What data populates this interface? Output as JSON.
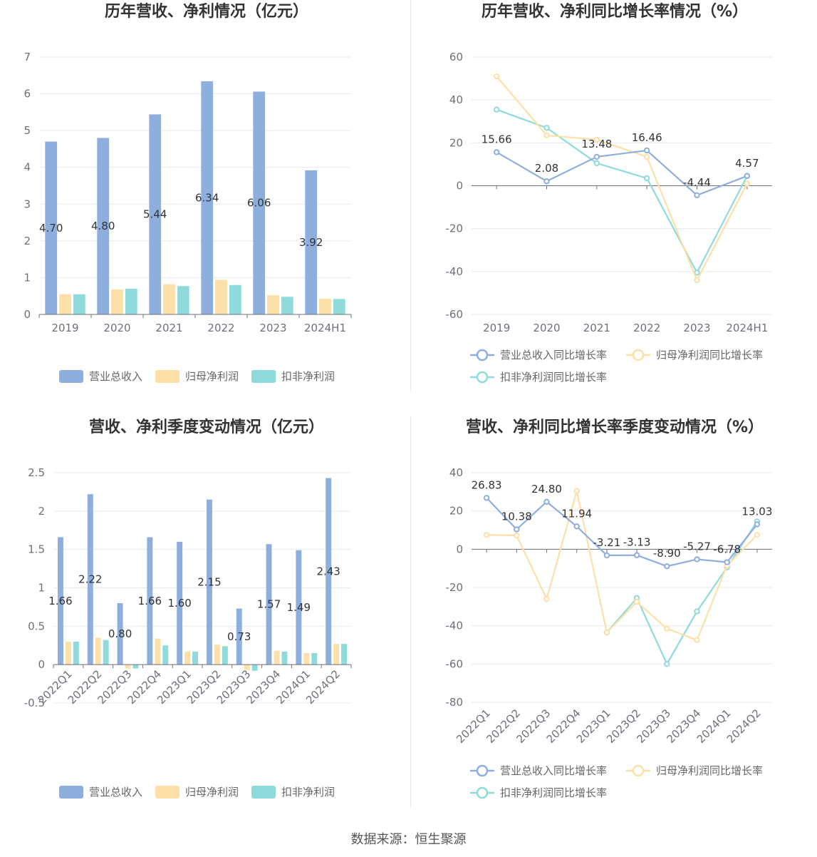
{
  "source": "数据来源：恒生聚源",
  "colors": {
    "revenue": "#8eaedd",
    "net": "#fde0a8",
    "deducted": "#8fdada",
    "grid": "#e6e9f0",
    "axis": "#6e7079"
  },
  "legend_bar": [
    "营业总收入",
    "归母净利润",
    "扣非净利润"
  ],
  "legend_line": [
    "营业总收入同比增长率",
    "归母净利润同比增长率",
    "扣非净利润同比增长率"
  ],
  "chart_data": [
    {
      "type": "bar",
      "title": "历年营收、净利情况（亿元）",
      "categories": [
        "2019",
        "2020",
        "2021",
        "2022",
        "2023",
        "2024H1"
      ],
      "ylim": [
        0,
        7
      ],
      "yticks": [
        "0",
        "1",
        "2",
        "3",
        "4",
        "5",
        "6",
        "7"
      ],
      "series": [
        {
          "name": "营业总收入",
          "values": [
            4.7,
            4.8,
            5.44,
            6.34,
            6.06,
            3.92
          ],
          "labels": [
            "4.70",
            "4.80",
            "5.44",
            "6.34",
            "6.06",
            "3.92"
          ]
        },
        {
          "name": "归母净利润",
          "values": [
            0.55,
            0.68,
            0.82,
            0.94,
            0.52,
            0.43
          ]
        },
        {
          "name": "扣非净利润",
          "values": [
            0.55,
            0.7,
            0.77,
            0.8,
            0.48,
            0.42
          ]
        }
      ]
    },
    {
      "type": "line",
      "title": "历年营收、净利同比增长率情况（%）",
      "categories": [
        "2019",
        "2020",
        "2021",
        "2022",
        "2023",
        "2024H1"
      ],
      "ylim": [
        -60,
        60
      ],
      "yticks": [
        "-60",
        "-40",
        "-20",
        "0",
        "20",
        "40",
        "60"
      ],
      "series": [
        {
          "name": "营业总收入同比增长率",
          "values": [
            15.66,
            2.08,
            13.48,
            16.46,
            -4.44,
            4.57
          ],
          "labels": [
            "15.66",
            "2.08",
            "13.48",
            "16.46",
            "-4.44",
            "4.57"
          ]
        },
        {
          "name": "归母净利润同比增长率",
          "values": [
            51,
            23.5,
            21.5,
            13.5,
            -44,
            1
          ]
        },
        {
          "name": "扣非净利润同比增长率",
          "values": [
            35.5,
            27,
            10.5,
            3.5,
            -40.5,
            4.5
          ]
        }
      ]
    },
    {
      "type": "bar",
      "title": "营收、净利季度变动情况（亿元）",
      "categories": [
        "2022Q1",
        "2022Q2",
        "2022Q3",
        "2022Q4",
        "2023Q1",
        "2023Q2",
        "2023Q3",
        "2023Q4",
        "2024Q1",
        "2024Q2"
      ],
      "ylim": [
        -0.5,
        2.5
      ],
      "yticks": [
        "-0.5",
        "0",
        "0.5",
        "1",
        "1.5",
        "2",
        "2.5"
      ],
      "series": [
        {
          "name": "营业总收入",
          "values": [
            1.66,
            2.22,
            0.8,
            1.66,
            1.6,
            2.15,
            0.73,
            1.57,
            1.49,
            2.43
          ],
          "labels": [
            "1.66",
            "2.22",
            "0.80",
            "1.66",
            "1.60",
            "2.15",
            "0.73",
            "1.57",
            "1.49",
            "2.43"
          ]
        },
        {
          "name": "归母净利润",
          "values": [
            0.3,
            0.35,
            -0.05,
            0.34,
            0.17,
            0.26,
            -0.07,
            0.18,
            0.15,
            0.27
          ]
        },
        {
          "name": "扣非净利润",
          "values": [
            0.3,
            0.32,
            -0.05,
            0.25,
            0.17,
            0.24,
            -0.08,
            0.17,
            0.15,
            0.27
          ]
        }
      ]
    },
    {
      "type": "line",
      "title": "营收、净利同比增长率季度变动情况（%）",
      "categories": [
        "2022Q1",
        "2022Q2",
        "2022Q3",
        "2022Q4",
        "2023Q1",
        "2023Q2",
        "2023Q3",
        "2023Q4",
        "2024Q1",
        "2024Q2"
      ],
      "ylim": [
        -80,
        40
      ],
      "yticks": [
        "-80",
        "-60",
        "-40",
        "-20",
        "0",
        "20",
        "40"
      ],
      "series": [
        {
          "name": "营业总收入同比增长率",
          "values": [
            26.83,
            10.38,
            24.8,
            11.94,
            -3.21,
            -3.13,
            -8.9,
            -5.27,
            -6.78,
            13.03
          ],
          "labels": [
            "26.83",
            "10.38",
            "24.80",
            "11.94",
            "-3.21",
            "-3.13",
            "-8.90",
            "-5.27",
            "-6.78",
            "13.03"
          ]
        },
        {
          "name": "归母净利润同比增长率",
          "values": [
            7.5,
            7.2,
            -26,
            30.5,
            -43.5,
            -27.5,
            -41.5,
            -47.5,
            -8.5,
            7.5
          ]
        },
        {
          "name": "扣非净利润同比增长率",
          "values": [
            null,
            null,
            null,
            null,
            -43.5,
            -25.5,
            -60,
            -32.5,
            -9.5,
            14.5
          ]
        }
      ]
    }
  ]
}
